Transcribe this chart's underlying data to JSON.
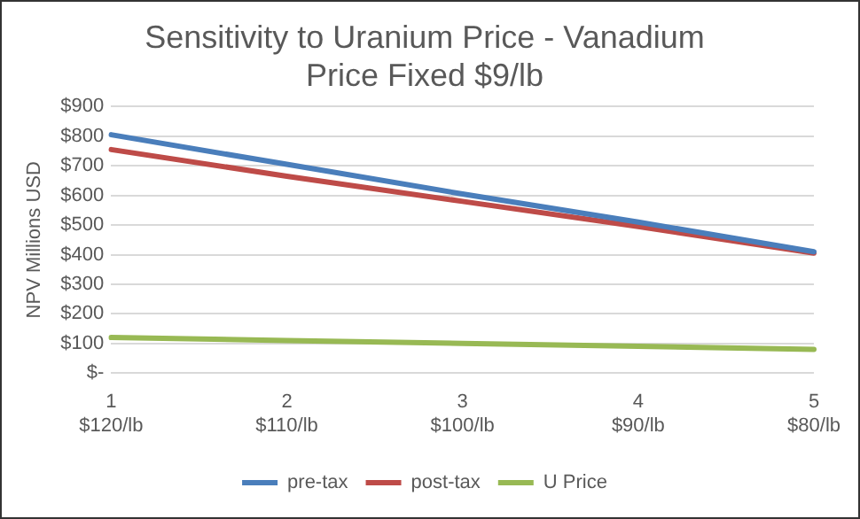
{
  "chart_data": {
    "type": "line",
    "title": "Sensitivity to Uranium Price - Vanadium Price Fixed $9/lb",
    "ylabel": "NPV Millions USD",
    "categories": [
      "1\n$120/lb",
      "2\n$110/lb",
      "3\n$100/lb",
      "4\n$90/lb",
      "5\n$80/lb"
    ],
    "series": [
      {
        "name": "pre-tax",
        "color": "#4a7ebb",
        "values": [
          805,
          705,
          605,
          510,
          410
        ]
      },
      {
        "name": "post-tax",
        "color": "#be4b48",
        "values": [
          755,
          665,
          580,
          495,
          405
        ]
      },
      {
        "name": "U Price",
        "color": "#98b954",
        "values": [
          120,
          110,
          100,
          90,
          80
        ]
      }
    ],
    "ylim": [
      0,
      900
    ],
    "yticks": [
      {
        "value": 0,
        "label": "$-"
      },
      {
        "value": 100,
        "label": "$100"
      },
      {
        "value": 200,
        "label": "$200"
      },
      {
        "value": 300,
        "label": "$300"
      },
      {
        "value": 400,
        "label": "$400"
      },
      {
        "value": 500,
        "label": "$500"
      },
      {
        "value": 600,
        "label": "$600"
      },
      {
        "value": 700,
        "label": "$700"
      },
      {
        "value": 800,
        "label": "$800"
      },
      {
        "value": 900,
        "label": "$900"
      }
    ],
    "grid": "y",
    "legend": "bottom",
    "marker": "none",
    "line_style": "solid"
  }
}
